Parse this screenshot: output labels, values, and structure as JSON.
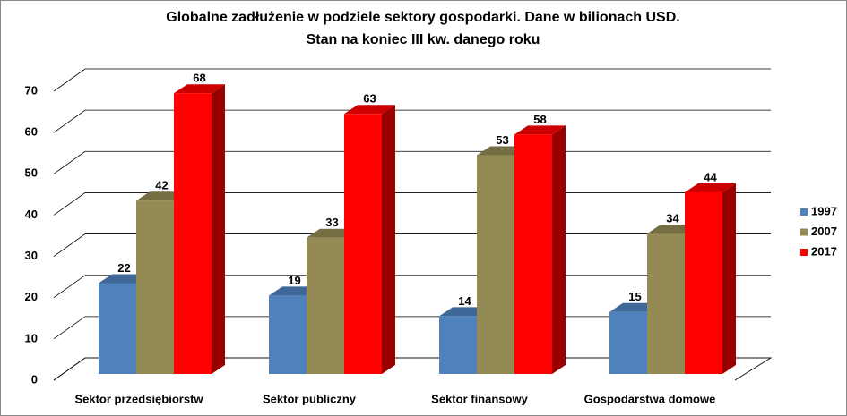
{
  "chart_data": {
    "type": "bar3d",
    "title": "Globalne zadłużenie w podziele sektory gospodarki. Dane w bilionach USD.",
    "subtitle": "Stan na koniec III kw. danego roku",
    "categories": [
      "Sektor przedsiębiorstw",
      "Sektor publiczny",
      "Sektor finansowy",
      "Gospodarstwa domowe"
    ],
    "series": [
      {
        "name": "1997",
        "color": "#4f81bd",
        "values": [
          22,
          19,
          14,
          15
        ]
      },
      {
        "name": "2007",
        "color": "#948a54",
        "values": [
          42,
          33,
          53,
          34
        ]
      },
      {
        "name": "2017",
        "color": "#ff0000",
        "values": [
          68,
          63,
          58,
          44
        ]
      }
    ],
    "ylim": [
      0,
      70
    ],
    "yticks": [
      0,
      10,
      20,
      30,
      40,
      50,
      60,
      70
    ],
    "grid": true,
    "legend": "right"
  }
}
